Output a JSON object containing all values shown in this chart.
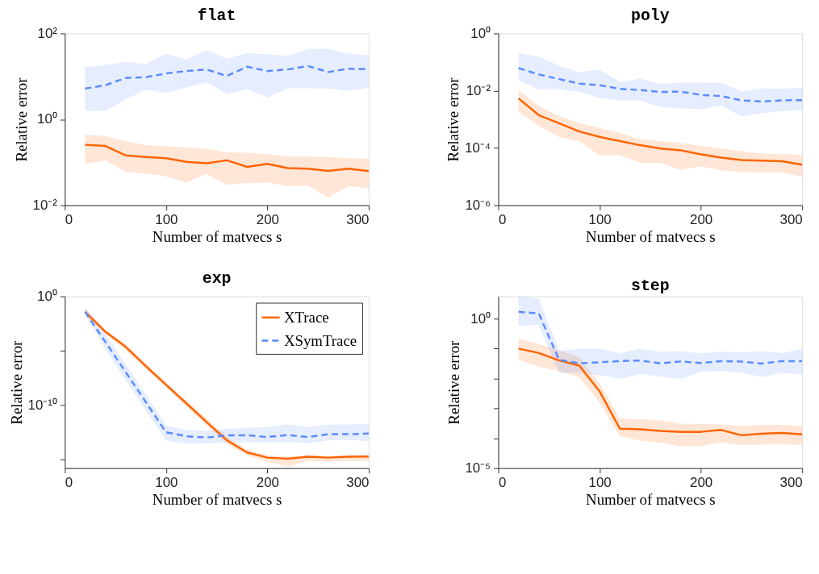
{
  "chart_data": [
    {
      "type": "line",
      "title": "flat",
      "xlabel": "Number of matvecs s",
      "ylabel": "Relative error",
      "log": "y",
      "grid": false,
      "legend": false,
      "xlim": [
        0,
        300
      ],
      "xticks": [
        0,
        100,
        200,
        300
      ],
      "ylim": [
        0.01,
        100
      ],
      "yticks": [
        {
          "value": 0.01,
          "label": "10⁻²"
        },
        {
          "value": 1,
          "label": "10⁰"
        },
        {
          "value": 100,
          "label": "10²"
        }
      ],
      "x": [
        20,
        40,
        60,
        80,
        100,
        120,
        140,
        160,
        180,
        200,
        220,
        240,
        260,
        280,
        300
      ],
      "series": [
        {
          "color": "#ff6400",
          "line_style": "solid",
          "values": [
            0.255,
            0.24,
            0.145,
            0.133,
            0.124,
            0.102,
            0.095,
            0.111,
            0.078,
            0.092,
            0.073,
            0.071,
            0.063,
            0.071,
            0.0625
          ],
          "upper": [
            0.436,
            0.41,
            0.313,
            0.25,
            0.234,
            0.222,
            0.207,
            0.17,
            0.166,
            0.155,
            0.137,
            0.137,
            0.132,
            0.125,
            0.121
          ],
          "lower": [
            0.091,
            0.111,
            0.06,
            0.054,
            0.047,
            0.034,
            0.053,
            0.03,
            0.033,
            0.034,
            0.028,
            0.0286,
            0.015,
            0.028,
            0.025
          ]
        },
        {
          "color": "#5b8cff",
          "line_style": "dashed",
          "values": [
            5.2,
            6.2,
            9.2,
            9.6,
            11.7,
            13.3,
            14.5,
            10.2,
            16.8,
            13.3,
            14.5,
            17.4,
            12.6,
            15.1,
            14.7
          ],
          "upper": [
            16.4,
            18.5,
            21.8,
            19.4,
            34,
            24.6,
            41,
            25.6,
            35,
            32.5,
            30.2,
            43.5,
            43.5,
            34,
            30.7
          ],
          "lower": [
            1.57,
            1.57,
            2.9,
            4.9,
            4.1,
            5.5,
            7.3,
            3.9,
            5.0,
            3.2,
            5.3,
            5.3,
            5.2,
            4.6,
            5.4
          ]
        }
      ]
    },
    {
      "type": "line",
      "title": "poly",
      "xlabel": "Number of matvecs s",
      "ylabel": "Relative error",
      "log": "y",
      "grid": false,
      "legend": false,
      "xlim": [
        0,
        300
      ],
      "xticks": [
        0,
        100,
        200,
        300
      ],
      "ylim": [
        1e-06,
        1
      ],
      "yticks": [
        {
          "value": 1e-06,
          "label": "10⁻⁶"
        },
        {
          "value": 0.0001,
          "label": "10⁻⁴"
        },
        {
          "value": 0.01,
          "label": "10⁻²"
        },
        {
          "value": 1,
          "label": "10⁰"
        }
      ],
      "x": [
        20,
        40,
        60,
        80,
        100,
        120,
        140,
        160,
        180,
        200,
        220,
        240,
        260,
        280,
        300
      ],
      "series": [
        {
          "color": "#ff6400",
          "line_style": "solid",
          "values": [
            0.00536,
            0.0014,
            0.00073,
            0.000375,
            0.000245,
            0.000173,
            0.000125,
            9.5e-05,
            8.3e-05,
            6e-05,
            4.6e-05,
            3.8e-05,
            3.6e-05,
            3.45e-05,
            2.6e-05
          ],
          "upper": [
            0.0106,
            0.0029,
            0.0013,
            0.00074,
            0.00049,
            0.00033,
            0.0002,
            0.000173,
            0.00015,
            0.00012,
            9.6e-05,
            7.9e-05,
            6.3e-05,
            6.2e-05,
            5.7e-05
          ],
          "lower": [
            0.00185,
            0.00059,
            0.00024,
            0.000173,
            5.4e-05,
            5.6e-05,
            3e-05,
            3e-05,
            1.7e-05,
            2.3e-05,
            1.66e-05,
            1.43e-05,
            1.38e-05,
            1.38e-05,
            1e-05
          ]
        },
        {
          "color": "#5b8cff",
          "line_style": "dashed",
          "values": [
            0.0615,
            0.0368,
            0.0255,
            0.0177,
            0.0155,
            0.0116,
            0.0106,
            0.009,
            0.0093,
            0.0071,
            0.0065,
            0.0046,
            0.0042,
            0.0046,
            0.0047
          ],
          "upper": [
            0.203,
            0.154,
            0.074,
            0.044,
            0.055,
            0.02,
            0.0264,
            0.0173,
            0.019,
            0.019,
            0.0187,
            0.0096,
            0.012,
            0.0118,
            0.0127
          ],
          "lower": [
            0.0224,
            0.0112,
            0.0112,
            0.009,
            0.0056,
            0.0045,
            0.0045,
            0.0027,
            0.0024,
            0.00226,
            0.003,
            0.00128,
            0.00163,
            0.00195,
            0.00207
          ]
        }
      ]
    },
    {
      "type": "line",
      "title": "exp",
      "xlabel": "Number of matvecs s",
      "ylabel": "Relative error",
      "log": "y",
      "grid": false,
      "legend": "top right",
      "xlim": [
        0,
        300
      ],
      "xticks": [
        0,
        100,
        200,
        300
      ],
      "ylim": [
        1.5e-16,
        1
      ],
      "yticks": [
        {
          "value": 1e-15,
          "label": null
        },
        {
          "value": 1e-10,
          "label": "10⁻¹⁰"
        },
        {
          "value": 1e-05,
          "label": null
        },
        {
          "value": 1,
          "label": "10⁰"
        }
      ],
      "x": [
        20,
        40,
        60,
        80,
        100,
        120,
        140,
        160,
        180,
        200,
        220,
        240,
        260,
        280,
        300
      ],
      "series": [
        {
          "name": "XTrace",
          "color": "#ff6400",
          "line_style": "solid",
          "values": [
            0.037,
            0.00055,
            2.3e-05,
            3.8e-07,
            7.1e-09,
            1.4e-10,
            2.6e-12,
            5.5e-14,
            4.2e-15,
            1.4e-15,
            1.1e-15,
            1.7e-15,
            1.4e-15,
            1.7e-15,
            1.8e-15
          ],
          "upper": [
            0.089,
            0.00089,
            3.8e-05,
            7.1e-07,
            1.3e-08,
            2.6e-10,
            5.5e-12,
            1.1e-13,
            7.1e-15,
            2.3e-15,
            1.8e-15,
            2.3e-15,
            2.1e-15,
            2.3e-15,
            2.3e-15
          ],
          "lower": [
            0.021,
            0.00034,
            1.1e-05,
            2e-07,
            3.8e-09,
            7.1e-11,
            1.3e-12,
            2.6e-14,
            2.3e-15,
            5.5e-16,
            2.1e-16,
            6.9e-16,
            6.3e-16,
            6.9e-16,
            6.9e-16
          ]
        },
        {
          "name": "XSymTrace",
          "color": "#5b8cff",
          "line_style": "dashed",
          "values": [
            0.037,
            6.5e-05,
            1.1e-07,
            1.8e-10,
            3e-13,
            1.3e-13,
            9.8e-14,
            1.6e-13,
            1.6e-13,
            1.1e-13,
            1.7e-13,
            1.1e-13,
            2e-13,
            2e-13,
            2.3e-13
          ],
          "upper": [
            0.089,
            0.00034,
            6.2e-07,
            8.9e-10,
            1.3e-12,
            4.8e-13,
            4.2e-13,
            6.2e-13,
            7.8e-13,
            9.1e-13,
            1.6e-12,
            9.1e-13,
            1.5e-12,
            1.6e-12,
            1.8e-12
          ],
          "lower": [
            0.021,
            1.4e-05,
            2.1e-08,
            3e-11,
            5.5e-14,
            2.6e-14,
            3e-14,
            3.4e-14,
            3.7e-14,
            3.4e-14,
            3.7e-14,
            3e-14,
            5.5e-14,
            6e-14,
            4.7e-14
          ]
        }
      ]
    },
    {
      "type": "line",
      "title": "step",
      "xlabel": "Number of matvecs s",
      "ylabel": "Relative error",
      "log": "y",
      "grid": false,
      "legend": false,
      "xlim": [
        0,
        300
      ],
      "xticks": [
        0,
        100,
        200,
        300
      ],
      "ylim": [
        1e-05,
        5.6
      ],
      "yticks": [
        {
          "value": 1e-05,
          "label": "10⁻⁵"
        },
        {
          "value": 0.0001,
          "label": null
        },
        {
          "value": 0.001,
          "label": null
        },
        {
          "value": 0.01,
          "label": null
        },
        {
          "value": 0.1,
          "label": null
        },
        {
          "value": 1,
          "label": "10⁰"
        }
      ],
      "x": [
        20,
        40,
        60,
        80,
        100,
        120,
        140,
        160,
        180,
        200,
        220,
        240,
        260,
        280,
        300
      ],
      "series": [
        {
          "color": "#ff6400",
          "line_style": "solid",
          "values": [
            0.1,
            0.071,
            0.04,
            0.027,
            0.0037,
            0.00021,
            0.0002,
            0.000176,
            0.000164,
            0.000164,
            0.000189,
            0.000126,
            0.000142,
            0.00015,
            0.000135
          ],
          "upper": [
            0.215,
            0.144,
            0.089,
            0.052,
            0.0069,
            0.00045,
            0.00043,
            0.0004,
            0.00031,
            0.0003,
            0.00029,
            0.00026,
            0.00028,
            0.00028,
            0.00026
          ],
          "lower": [
            0.042,
            0.0246,
            0.018,
            0.0107,
            0.00154,
            0.000115,
            8.4e-05,
            7e-05,
            5.4e-05,
            5.4e-05,
            7.4e-05,
            5.9e-05,
            6.1e-05,
            6.4e-05,
            5.9e-05
          ]
        },
        {
          "color": "#5b8cff",
          "line_style": "dashed",
          "values": [
            1.7,
            1.5,
            0.042,
            0.032,
            0.035,
            0.038,
            0.04,
            0.032,
            0.037,
            0.033,
            0.038,
            0.037,
            0.0315,
            0.038,
            0.038
          ],
          "upper": [
            5.6,
            4.7,
            0.085,
            0.097,
            0.097,
            0.071,
            0.1,
            0.077,
            0.082,
            0.068,
            0.079,
            0.075,
            0.082,
            0.071,
            0.1
          ],
          "lower": [
            0.57,
            0.62,
            0.0153,
            0.0153,
            0.0128,
            0.0098,
            0.014,
            0.0117,
            0.0095,
            0.0167,
            0.018,
            0.0153,
            0.0113,
            0.0153,
            0.0135
          ]
        }
      ]
    }
  ]
}
